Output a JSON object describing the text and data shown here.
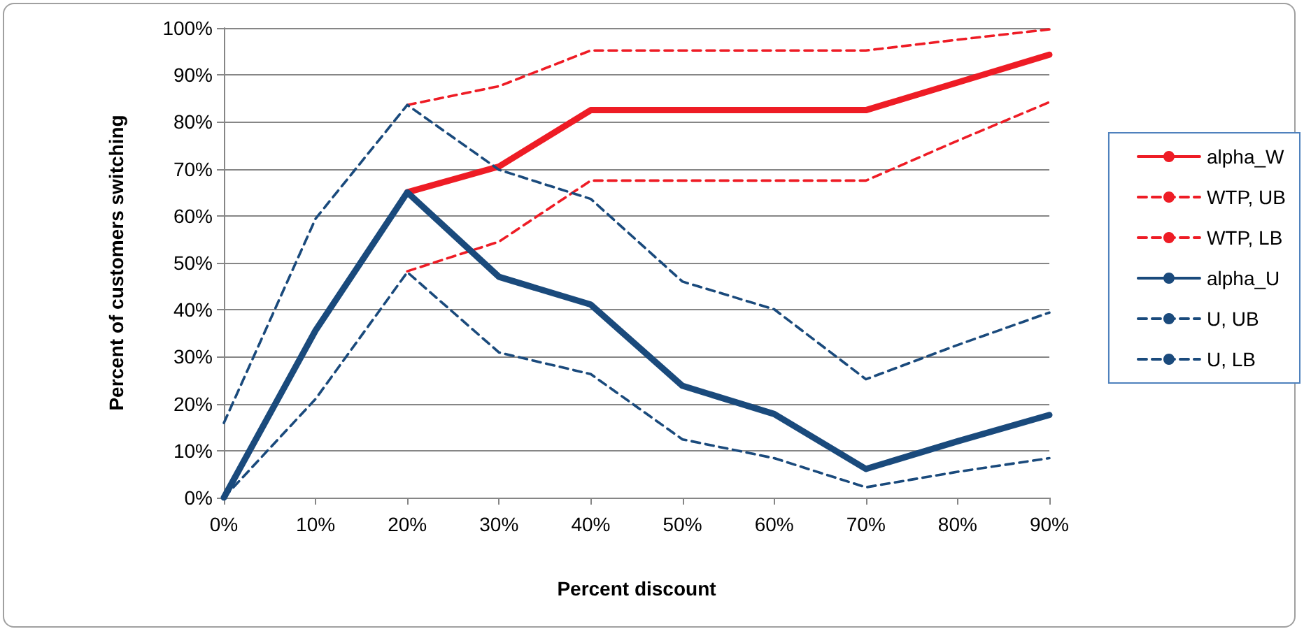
{
  "chart_data": {
    "type": "line",
    "xlabel": "Percent discount",
    "ylabel": "Percent of customers switching",
    "x": [
      0,
      10,
      20,
      30,
      40,
      50,
      60,
      70,
      80,
      90
    ],
    "xlim": [
      0,
      90
    ],
    "xticks": [
      {
        "value": 0,
        "label": "0%"
      },
      {
        "value": 10,
        "label": "10%"
      },
      {
        "value": 20,
        "label": "20%"
      },
      {
        "value": 30,
        "label": "30%"
      },
      {
        "value": 40,
        "label": "40%"
      },
      {
        "value": 50,
        "label": "50%"
      },
      {
        "value": 60,
        "label": "60%"
      },
      {
        "value": 70,
        "label": "70%"
      },
      {
        "value": 80,
        "label": "80%"
      },
      {
        "value": 90,
        "label": "90%"
      }
    ],
    "ylim": [
      0,
      100
    ],
    "yticks": [
      {
        "value": 0,
        "label": "0%"
      },
      {
        "value": 10,
        "label": "10%"
      },
      {
        "value": 20,
        "label": "20%"
      },
      {
        "value": 30,
        "label": "30%"
      },
      {
        "value": 40,
        "label": "40%"
      },
      {
        "value": 50,
        "label": "50%"
      },
      {
        "value": 60,
        "label": "60%"
      },
      {
        "value": 70,
        "label": "70%"
      },
      {
        "value": 80,
        "label": "80%"
      },
      {
        "value": 90,
        "label": "90%"
      },
      {
        "value": 100,
        "label": "100%"
      }
    ],
    "grid": "y",
    "legend": "right",
    "marker": "none",
    "series": [
      {
        "name": "alpha_W",
        "color": "#ee1c25",
        "line_style": "solid",
        "values": [
          null,
          null,
          65,
          70.5,
          82.5,
          82.5,
          82.5,
          82.5,
          88.4,
          94.3
        ]
      },
      {
        "name": "WTP, UB",
        "color": "#ee1c25",
        "line_style": "dashed",
        "values": [
          null,
          null,
          83.6,
          87.6,
          95.2,
          95.2,
          95.2,
          95.2,
          97.5,
          99.7
        ]
      },
      {
        "name": "WTP, LB",
        "color": "#ee1c25",
        "line_style": "dashed",
        "values": [
          null,
          null,
          48.2,
          54.5,
          67.5,
          67.5,
          67.5,
          67.5,
          76,
          84.2
        ]
      },
      {
        "name": "alpha_U",
        "color": "#1a4a7c",
        "line_style": "solid",
        "values": [
          0,
          35.6,
          65,
          47,
          41.1,
          23.8,
          17.8,
          6.1,
          12,
          17.6
        ]
      },
      {
        "name": "U, UB",
        "color": "#1a4a7c",
        "line_style": "dashed",
        "values": [
          15.9,
          59.4,
          83.6,
          69.8,
          63.6,
          46,
          40.1,
          25.2,
          32.5,
          39.4
        ]
      },
      {
        "name": "U, LB",
        "color": "#1a4a7c",
        "line_style": "dashed",
        "values": [
          0,
          21,
          48,
          30.9,
          26.3,
          12.4,
          8.4,
          2.2,
          5.5,
          8.4
        ]
      }
    ]
  }
}
